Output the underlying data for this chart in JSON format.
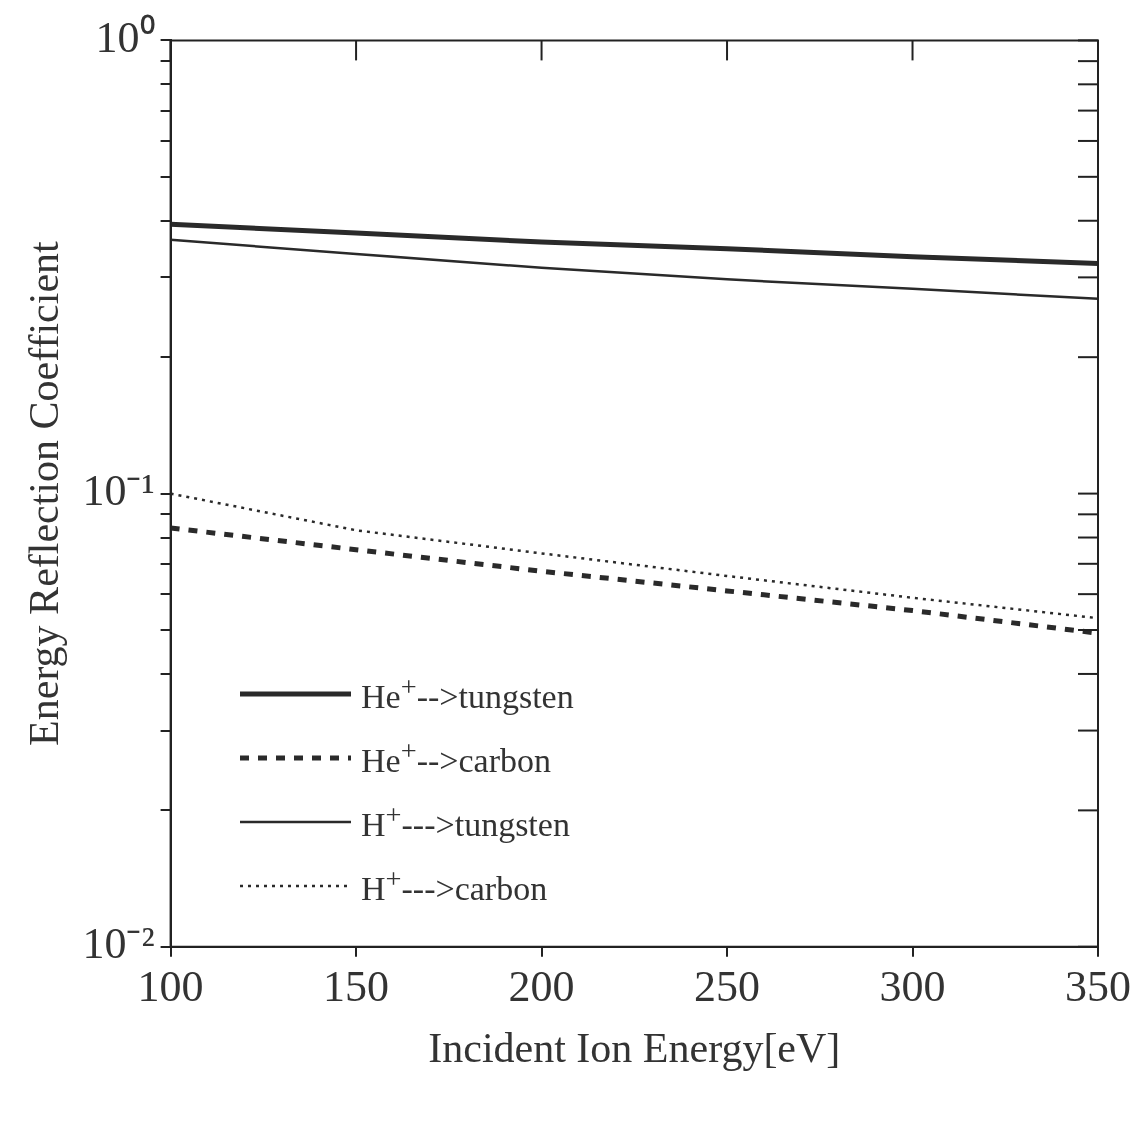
{
  "chart_data": {
    "type": "line",
    "xlabel": "Incident Ion Energy[eV]",
    "ylabel": "Energy Reflection Coefficient",
    "x": [
      100,
      150,
      200,
      250,
      300,
      350
    ],
    "series": [
      {
        "name": "He$^{+}$-->tungsten",
        "color": "#2a2a2a",
        "line_style": "solid",
        "values": [
          0.393,
          0.376,
          0.359,
          0.347,
          0.333,
          0.322
        ]
      },
      {
        "name": "He$^{+}$-->carbon",
        "color": "#2a2a2a",
        "line_style": "dashed",
        "values": [
          0.084,
          0.0752,
          0.0674,
          0.061,
          0.0552,
          0.0492
        ]
      },
      {
        "name": "H$^{+}$--->tungsten",
        "color": "#2a2a2a",
        "line_style": "solid",
        "values": [
          0.363,
          0.338,
          0.315,
          0.297,
          0.283,
          0.269
        ]
      },
      {
        "name": "H$^{+}$--->carbon",
        "color": "#2a2a2a",
        "line_style": "dotted",
        "values": [
          0.1,
          0.083,
          0.0738,
          0.0658,
          0.0589,
          0.0531
        ]
      }
    ],
    "log": "y",
    "grid": false,
    "legend": "bottom left",
    "marker": "none",
    "xlim": [
      100,
      350
    ],
    "xticks": [
      100,
      150,
      200,
      250,
      300,
      350
    ],
    "ylim": [
      0.01,
      1
    ],
    "yticks": [
      {
        "value": 0.01,
        "label": "10⁻²"
      },
      {
        "value": 0.02,
        "label": null
      },
      {
        "value": 0.03,
        "label": null
      },
      {
        "value": 0.04,
        "label": null
      },
      {
        "value": 0.05,
        "label": null
      },
      {
        "value": 0.06,
        "label": null
      },
      {
        "value": 0.07,
        "label": null
      },
      {
        "value": 0.08,
        "label": null
      },
      {
        "value": 0.09,
        "label": null
      },
      {
        "value": 0.1,
        "label": "10⁻¹"
      },
      {
        "value": 0.2,
        "label": null
      },
      {
        "value": 0.3,
        "label": null
      },
      {
        "value": 0.4,
        "label": null
      },
      {
        "value": 0.5,
        "label": null
      },
      {
        "value": 0.6,
        "label": null
      },
      {
        "value": 0.7,
        "label": null
      },
      {
        "value": 0.8,
        "label": null
      },
      {
        "value": 0.9,
        "label": null
      },
      {
        "value": 1,
        "label": "10⁰"
      }
    ]
  }
}
